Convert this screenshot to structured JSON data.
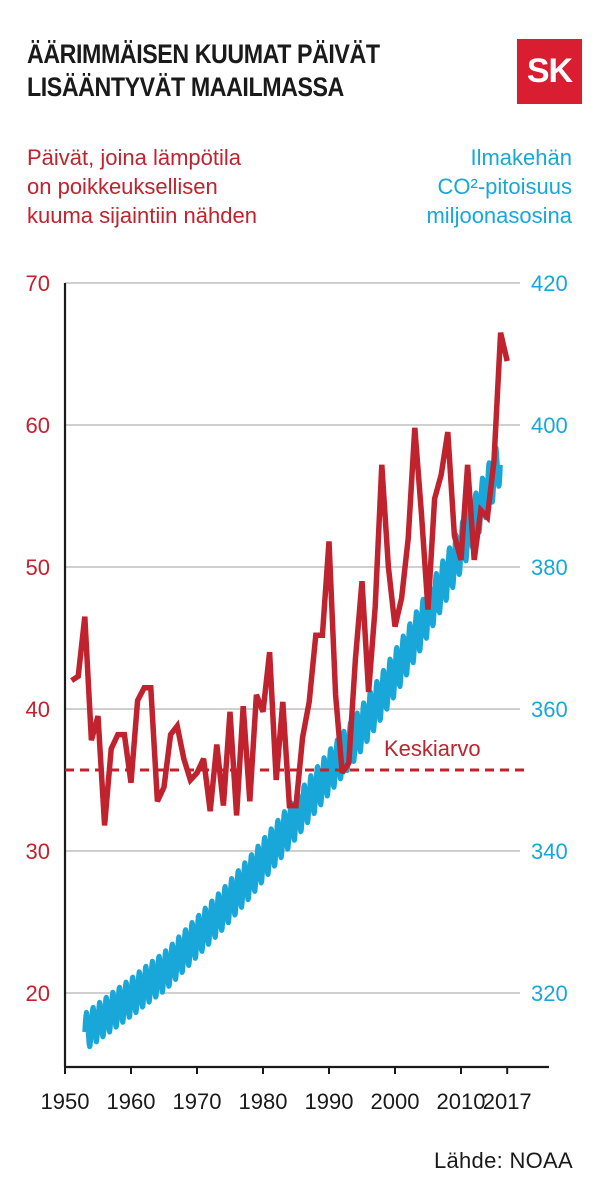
{
  "header": {
    "title_line1": "ÄÄRIMMÄISEN KUUMAT PÄIVÄT",
    "title_line2": "LISÄÄNTYVÄT MAAILMASSA",
    "logo_text": "SK"
  },
  "footer": {
    "source": "Lähde: NOAA"
  },
  "colors": {
    "red": "#c0222e",
    "blue": "#19a7d9",
    "axis": "#1a1a1a",
    "grid": "#b5b5b5"
  },
  "chart_data": {
    "type": "line",
    "left_axis_label": [
      "Päivät, joina lämpötila",
      "on poikkeuksellisen",
      "kuuma sijaintiin nähden"
    ],
    "right_axis_label": [
      "Ilmakehän",
      "CO²-pitoisuus",
      "miljoonasosina"
    ],
    "x_ticks": [
      "1950",
      "1960",
      "1970",
      "1980",
      "1990",
      "2000",
      "2010",
      "2017"
    ],
    "y_left_ticks": [
      "70",
      "60",
      "50",
      "40",
      "30",
      "20"
    ],
    "y_right_ticks": [
      "420",
      "400",
      "380",
      "360",
      "340",
      "320"
    ],
    "xlim": [
      1950,
      2019
    ],
    "ylim_left": [
      15,
      70
    ],
    "ylim_right": [
      310,
      420
    ],
    "grid": true,
    "average_line": {
      "label": "Keskiarvo",
      "value": 35.7
    },
    "series": [
      {
        "axis": "left",
        "color": "#c0222e",
        "x": [
          1951,
          1952,
          1953,
          1954,
          1955,
          1956,
          1957,
          1958,
          1959,
          1960,
          1961,
          1962,
          1963,
          1964,
          1965,
          1966,
          1967,
          1968,
          1969,
          1970,
          1971,
          1972,
          1973,
          1974,
          1975,
          1976,
          1977,
          1978,
          1979,
          1980,
          1981,
          1982,
          1983,
          1984,
          1985,
          1986,
          1987,
          1988,
          1989,
          1990,
          1991,
          1992,
          1993,
          1994,
          1995,
          1996,
          1997,
          1998,
          1999,
          2000,
          2001,
          2002,
          2003,
          2004,
          2005,
          2006,
          2007,
          2008,
          2009,
          2010,
          2011,
          2012,
          2013,
          2014,
          2015,
          2016,
          2017
        ],
        "values": [
          42,
          42.3,
          46.5,
          37.8,
          39.5,
          31.8,
          37.2,
          38.2,
          38.2,
          34.8,
          40.6,
          41.5,
          41.5,
          33.5,
          34.5,
          38.2,
          38.8,
          36.5,
          35,
          35.5,
          36.5,
          32.8,
          37.5,
          33.2,
          39.8,
          32.5,
          40.2,
          33.5,
          41,
          39.8,
          44,
          35,
          40.5,
          33.2,
          33.2,
          38,
          40.5,
          45.2,
          45.2,
          51.8,
          41,
          35.5,
          36.2,
          43.5,
          49,
          41.2,
          47.2,
          57.2,
          50,
          45.8,
          47.8,
          52,
          59.8,
          53.8,
          47,
          54.8,
          56.5,
          59.5,
          52.2,
          50.5,
          57.2,
          50.5,
          54,
          53.5,
          57.5,
          66.5,
          64.5
        ]
      },
      {
        "axis": "right",
        "color": "#19a7d9",
        "x": [
          1953,
          1954,
          1955,
          1956,
          1957,
          1958,
          1959,
          1960,
          1961,
          1962,
          1963,
          1964,
          1965,
          1966,
          1967,
          1968,
          1969,
          1970,
          1971,
          1972,
          1973,
          1974,
          1975,
          1976,
          1977,
          1978,
          1979,
          1980,
          1981,
          1982,
          1983,
          1984,
          1985,
          1986,
          1987,
          1988,
          1989,
          1990,
          1991,
          1992,
          1993,
          1994,
          1995,
          1996,
          1997,
          1998,
          1999,
          2000,
          2001,
          2002,
          2003,
          2004,
          2005,
          2006,
          2007,
          2008,
          2009,
          2010,
          2011,
          2012,
          2013,
          2014,
          2015,
          2016
        ],
        "values": [
          314.5,
          315.2,
          315.9,
          316.6,
          317.3,
          318.0,
          318.7,
          319.4,
          320.1,
          320.9,
          321.6,
          322.3,
          323.0,
          323.9,
          324.9,
          325.9,
          326.9,
          327.9,
          328.9,
          329.9,
          330.9,
          331.9,
          333.0,
          334.1,
          335.2,
          336.3,
          337.5,
          338.7,
          339.9,
          341.1,
          342.3,
          343.5,
          344.8,
          346.0,
          347.3,
          348.6,
          349.8,
          351.1,
          352.3,
          353.5,
          354.7,
          356.0,
          357.4,
          358.9,
          360.4,
          361.9,
          363.5,
          365.1,
          366.7,
          368.4,
          370.1,
          371.8,
          373.6,
          375.4,
          377.2,
          379.0,
          380.8,
          382.7,
          384.6,
          386.6,
          388.7,
          390.8,
          393.0,
          395.3
        ]
      }
    ]
  }
}
